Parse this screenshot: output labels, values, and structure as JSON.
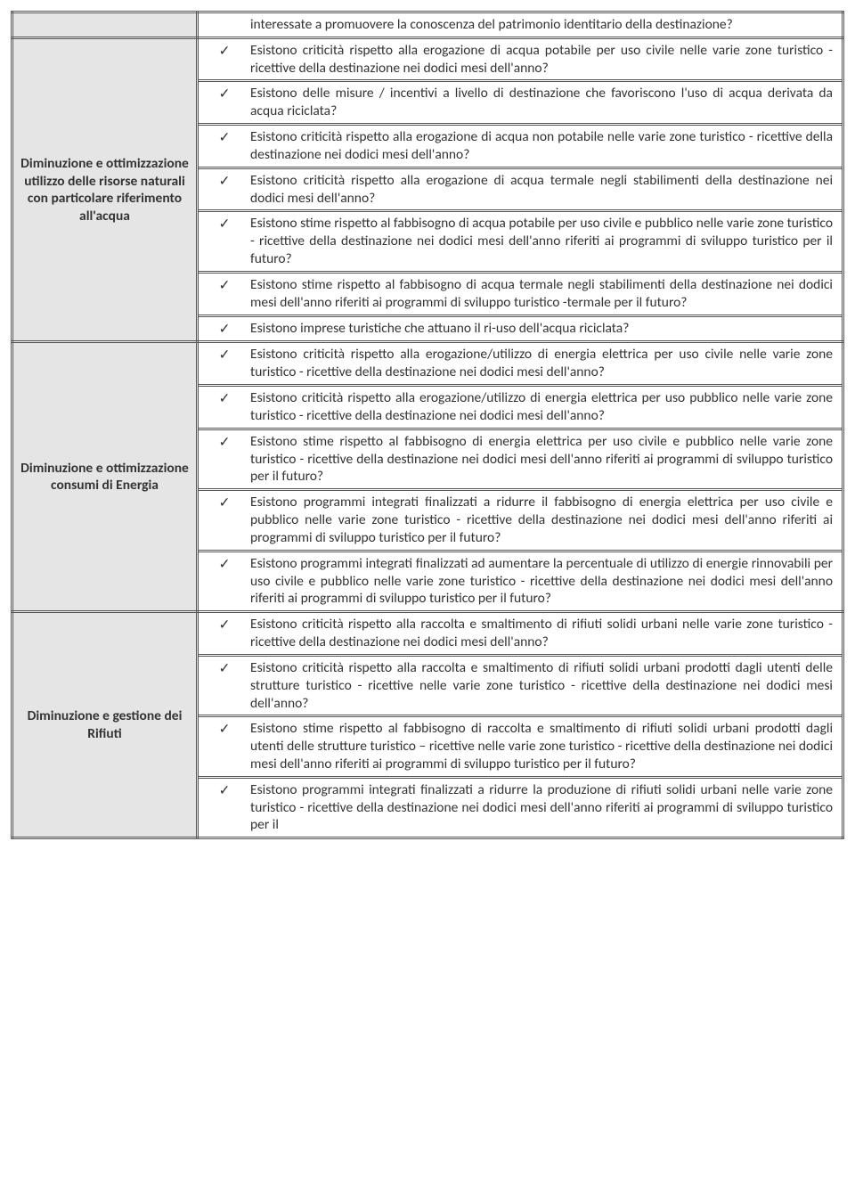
{
  "checkmark": "✓",
  "sections": [
    {
      "category": "",
      "firstPlain": true,
      "items": [
        "interessate a promuovere la conoscenza del patrimonio identitario della destinazione?"
      ]
    },
    {
      "category": "Diminuzione e ottimizzazione utilizzo delle risorse naturali con particolare riferimento all'acqua",
      "items": [
        "Esistono criticità rispetto alla erogazione di acqua potabile per uso civile nelle varie zone turistico - ricettive della destinazione nei dodici mesi dell'anno?",
        "Esistono delle misure / incentivi a livello di destinazione che favoriscono l'uso di acqua derivata da acqua riciclata?",
        "Esistono criticità rispetto alla erogazione di acqua non potabile nelle varie zone turistico - ricettive della destinazione nei dodici mesi dell'anno?",
        "Esistono criticità rispetto alla erogazione di acqua termale negli stabilimenti della destinazione nei dodici mesi dell'anno?",
        "Esistono stime rispetto al fabbisogno di acqua potabile per uso civile e pubblico nelle varie zone turistico - ricettive della destinazione nei dodici mesi dell'anno riferiti ai programmi di sviluppo turistico per il futuro?",
        "Esistono stime rispetto al fabbisogno di acqua termale negli stabilimenti della destinazione nei dodici mesi dell'anno riferiti ai programmi di sviluppo turistico -termale per il futuro?",
        "Esistono imprese turistiche che attuano il ri-uso dell'acqua riciclata?"
      ]
    },
    {
      "category": "Diminuzione e ottimizzazione consumi di Energia",
      "items": [
        "Esistono criticità rispetto alla erogazione/utilizzo di energia elettrica per uso civile nelle varie zone turistico - ricettive della destinazione nei dodici mesi dell'anno?",
        "Esistono criticità rispetto alla erogazione/utilizzo di energia elettrica per uso pubblico nelle varie zone turistico - ricettive della destinazione nei dodici mesi dell'anno?",
        "Esistono stime rispetto al fabbisogno di energia elettrica per uso civile e pubblico nelle varie zone turistico - ricettive della destinazione nei dodici mesi dell'anno riferiti ai programmi di sviluppo turistico per il futuro?",
        "Esistono programmi integrati finalizzati a ridurre il fabbisogno di energia elettrica per uso civile e pubblico nelle varie zone turistico - ricettive della destinazione nei dodici mesi dell'anno riferiti ai programmi di sviluppo turistico per il futuro?",
        "Esistono programmi integrati finalizzati ad aumentare la percentuale di utilizzo di energie rinnovabili per uso civile e pubblico nelle varie zone turistico - ricettive della destinazione nei dodici mesi dell'anno riferiti ai programmi di sviluppo turistico per il futuro?"
      ]
    },
    {
      "category": "Diminuzione e gestione dei Rifiuti",
      "items": [
        "Esistono criticità rispetto alla raccolta e smaltimento di rifiuti solidi urbani nelle varie zone turistico - ricettive della destinazione nei dodici mesi dell'anno?",
        "Esistono criticità rispetto alla raccolta e smaltimento di rifiuti solidi urbani prodotti dagli utenti delle strutture turistico - ricettive nelle varie zone turistico - ricettive della destinazione nei dodici mesi dell'anno?",
        "Esistono stime rispetto al fabbisogno di raccolta e smaltimento di rifiuti solidi urbani prodotti dagli utenti delle strutture turistico – ricettive nelle varie zone turistico - ricettive della destinazione nei dodici mesi dell'anno riferiti ai programmi di sviluppo turistico per il futuro?",
        "Esistono programmi integrati finalizzati a ridurre la produzione di rifiuti solidi urbani nelle varie zone turistico - ricettive della destinazione nei dodici mesi dell'anno riferiti ai programmi di sviluppo turistico per il"
      ]
    }
  ]
}
